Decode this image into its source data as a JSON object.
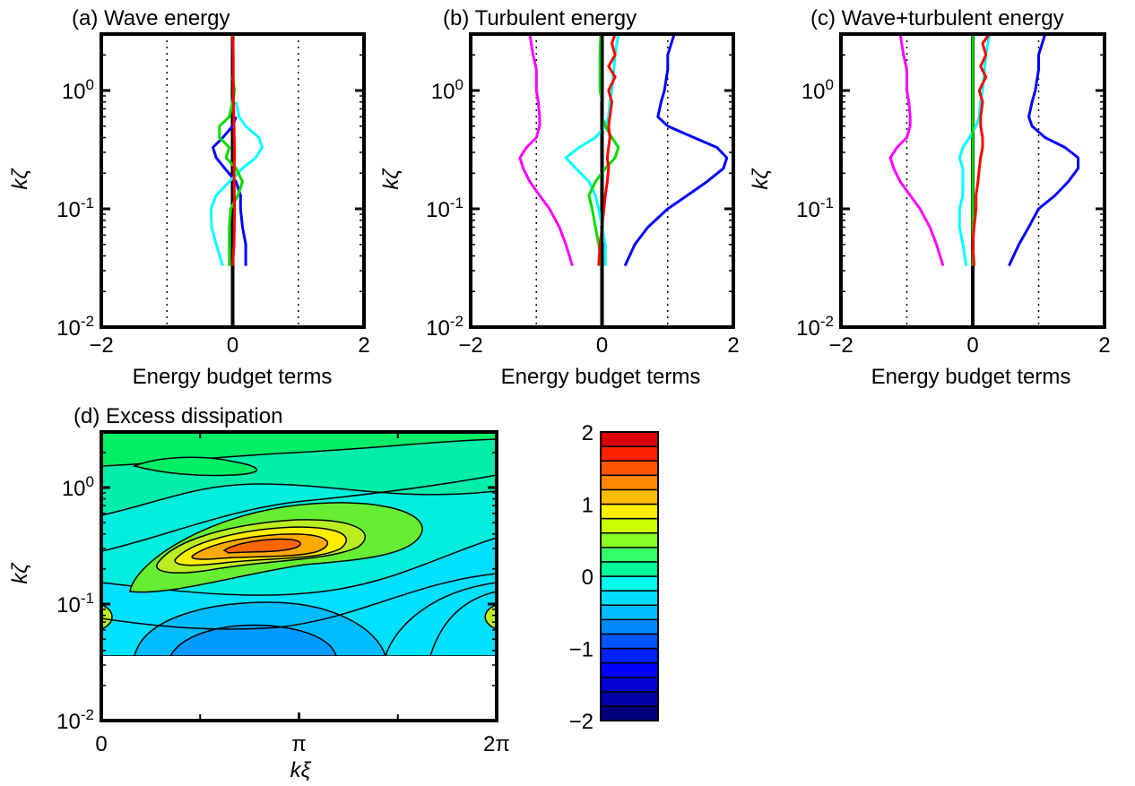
{
  "chart_data": [
    {
      "id": "a",
      "type": "line",
      "title": "(a) Wave energy",
      "xlabel": "Energy budget terms",
      "ylabel": "kζ",
      "xlim": [
        -2,
        2
      ],
      "ylim": [
        0.01,
        3
      ],
      "yscale": "log",
      "xticks": [
        -2,
        0,
        2
      ],
      "xtick_labels": [
        "−2",
        "0",
        "2"
      ],
      "yticks": [
        0.01,
        0.1,
        1
      ],
      "ytick_labels": [
        "10^-2",
        "10^-1",
        "10^0"
      ],
      "reference_lines": [
        -1,
        0,
        1
      ],
      "series": [
        {
          "color": "#0000ff",
          "y": [
            0.033,
            0.05,
            0.07,
            0.1,
            0.13,
            0.17,
            0.22,
            0.27,
            0.33,
            0.4,
            0.5,
            0.6
          ],
          "x": [
            0.2,
            0.2,
            0.15,
            0.12,
            0.12,
            0.05,
            -0.12,
            -0.25,
            -0.3,
            -0.15,
            0.0,
            0.05
          ]
        },
        {
          "color": "#00ffff",
          "y": [
            0.033,
            0.05,
            0.07,
            0.1,
            0.13,
            0.17,
            0.22,
            0.27,
            0.33,
            0.4,
            0.5,
            0.6,
            0.8
          ],
          "x": [
            -0.15,
            -0.25,
            -0.32,
            -0.33,
            -0.25,
            -0.05,
            0.15,
            0.35,
            0.45,
            0.4,
            0.2,
            0.1,
            0.05
          ]
        },
        {
          "color": "#00dd00",
          "y": [
            0.033,
            0.05,
            0.07,
            0.1,
            0.13,
            0.17,
            0.22,
            0.27,
            0.33,
            0.4,
            0.5,
            0.6,
            0.8,
            1.0,
            1.3
          ],
          "x": [
            -0.05,
            -0.05,
            -0.05,
            -0.03,
            0.08,
            0.15,
            0.05,
            -0.1,
            -0.05,
            -0.2,
            -0.2,
            -0.05,
            0.0,
            0.03,
            0.0
          ]
        },
        {
          "color": "#ff0000",
          "y": [
            0.033,
            0.05,
            0.1,
            0.2,
            0.3,
            0.5,
            1.0,
            2.0,
            3.0
          ],
          "x": [
            0.0,
            0.02,
            0.03,
            0.02,
            0.03,
            0.02,
            0.01,
            0.01,
            0.0
          ]
        }
      ]
    },
    {
      "id": "b",
      "type": "line",
      "title": "(b) Turbulent energy",
      "xlabel": "Energy budget terms",
      "ylabel": "kζ",
      "xlim": [
        -2,
        2
      ],
      "ylim": [
        0.01,
        3
      ],
      "yscale": "log",
      "xticks": [
        -2,
        0,
        2
      ],
      "xtick_labels": [
        "−2",
        "0",
        "2"
      ],
      "yticks": [
        0.01,
        0.1,
        1
      ],
      "ytick_labels": [
        "10^-2",
        "10^-1",
        "10^0"
      ],
      "reference_lines": [
        -1,
        0,
        1
      ],
      "series": [
        {
          "color": "#ff00ff",
          "y": [
            0.033,
            0.05,
            0.07,
            0.1,
            0.13,
            0.17,
            0.22,
            0.27,
            0.33,
            0.4,
            0.5,
            0.6,
            0.8,
            1.0,
            1.5,
            2.0,
            3.0
          ],
          "x": [
            -0.45,
            -0.55,
            -0.65,
            -0.8,
            -0.95,
            -1.1,
            -1.2,
            -1.25,
            -1.15,
            -1.0,
            -0.95,
            -0.95,
            -0.97,
            -1.0,
            -1.0,
            -1.05,
            -1.1
          ]
        },
        {
          "color": "#0000ff",
          "y": [
            0.033,
            0.05,
            0.07,
            0.1,
            0.13,
            0.17,
            0.22,
            0.27,
            0.33,
            0.4,
            0.5,
            0.6,
            0.8,
            1.0,
            1.5,
            2.0,
            3.0
          ],
          "x": [
            0.35,
            0.5,
            0.7,
            1.0,
            1.3,
            1.6,
            1.85,
            1.9,
            1.75,
            1.4,
            1.0,
            0.85,
            0.9,
            0.95,
            1.0,
            1.0,
            1.1
          ]
        },
        {
          "color": "#00ffff",
          "y": [
            0.033,
            0.05,
            0.07,
            0.1,
            0.13,
            0.17,
            0.22,
            0.27,
            0.33,
            0.4,
            0.5,
            0.6,
            0.8,
            1.0,
            1.5,
            2.0,
            3.0
          ],
          "x": [
            0.05,
            0.05,
            0.0,
            -0.05,
            -0.1,
            -0.2,
            -0.4,
            -0.55,
            -0.35,
            -0.1,
            0.05,
            0.1,
            0.12,
            0.15,
            0.18,
            0.2,
            0.25
          ]
        },
        {
          "color": "#00dd00",
          "y": [
            0.033,
            0.05,
            0.07,
            0.1,
            0.13,
            0.17,
            0.22,
            0.27,
            0.33,
            0.4,
            0.5,
            0.6,
            0.8,
            1.0,
            2.0,
            3.0
          ],
          "x": [
            0.0,
            -0.05,
            -0.1,
            -0.15,
            -0.2,
            -0.1,
            0.05,
            0.2,
            0.25,
            0.15,
            0.05,
            0.0,
            0.0,
            -0.03,
            -0.03,
            -0.02
          ]
        },
        {
          "color": "#ff0000",
          "y": [
            0.033,
            0.05,
            0.07,
            0.1,
            0.13,
            0.17,
            0.22,
            0.27,
            0.33,
            0.4,
            0.5,
            0.6,
            0.8,
            1.0,
            1.3,
            1.6,
            2.0,
            2.5,
            3.0
          ],
          "x": [
            -0.05,
            -0.03,
            0.0,
            0.03,
            0.05,
            0.08,
            0.1,
            0.08,
            0.1,
            0.12,
            0.1,
            0.12,
            0.15,
            0.1,
            0.2,
            0.1,
            0.2,
            0.15,
            0.2
          ]
        },
        {
          "color": "#000000",
          "y": [
            0.033,
            3.0
          ],
          "x": [
            0.0,
            0.0
          ]
        }
      ]
    },
    {
      "id": "c",
      "type": "line",
      "title": "(c) Wave+turbulent energy",
      "xlabel": "Energy budget terms",
      "ylabel": "kζ",
      "xlim": [
        -2,
        2
      ],
      "ylim": [
        0.01,
        3
      ],
      "yscale": "log",
      "xticks": [
        -2,
        0,
        2
      ],
      "xtick_labels": [
        "−2",
        "0",
        "2"
      ],
      "yticks": [
        0.01,
        0.1,
        1
      ],
      "ytick_labels": [
        "10^-2",
        "10^-1",
        "10^0"
      ],
      "reference_lines": [
        -1,
        0,
        1
      ],
      "series": [
        {
          "color": "#ff00ff",
          "y": [
            0.033,
            0.05,
            0.07,
            0.1,
            0.13,
            0.17,
            0.22,
            0.27,
            0.33,
            0.4,
            0.5,
            0.6,
            0.8,
            1.0,
            1.5,
            2.0,
            3.0
          ],
          "x": [
            -0.45,
            -0.55,
            -0.65,
            -0.8,
            -0.95,
            -1.1,
            -1.2,
            -1.25,
            -1.15,
            -1.0,
            -0.95,
            -0.95,
            -0.97,
            -1.0,
            -1.0,
            -1.05,
            -1.1
          ]
        },
        {
          "color": "#0000ff",
          "y": [
            0.033,
            0.05,
            0.07,
            0.1,
            0.13,
            0.17,
            0.22,
            0.27,
            0.33,
            0.4,
            0.5,
            0.6,
            0.8,
            1.0,
            1.5,
            2.0,
            3.0
          ],
          "x": [
            0.55,
            0.7,
            0.85,
            1.0,
            1.25,
            1.45,
            1.6,
            1.6,
            1.4,
            1.1,
            0.9,
            0.85,
            0.9,
            0.95,
            1.0,
            1.0,
            1.1
          ]
        },
        {
          "color": "#00ffff",
          "y": [
            0.033,
            0.05,
            0.07,
            0.1,
            0.13,
            0.17,
            0.22,
            0.27,
            0.33,
            0.4,
            0.5,
            0.6,
            0.8,
            1.0,
            1.5,
            2.0,
            3.0
          ],
          "x": [
            -0.1,
            -0.15,
            -0.2,
            -0.2,
            -0.15,
            -0.15,
            -0.15,
            -0.2,
            -0.15,
            -0.05,
            0.05,
            0.1,
            0.12,
            0.15,
            0.18,
            0.2,
            0.25
          ]
        },
        {
          "color": "#00dd00",
          "y": [
            0.033,
            3.0
          ],
          "x": [
            0.0,
            0.0
          ]
        },
        {
          "color": "#ff0000",
          "y": [
            0.033,
            0.05,
            0.07,
            0.1,
            0.13,
            0.17,
            0.22,
            0.27,
            0.33,
            0.4,
            0.5,
            0.6,
            0.8,
            1.0,
            1.3,
            1.6,
            2.0,
            2.5,
            3.0
          ],
          "x": [
            0.02,
            0.0,
            0.02,
            0.05,
            0.05,
            0.08,
            0.1,
            0.12,
            0.15,
            0.15,
            0.12,
            0.12,
            0.15,
            0.1,
            0.2,
            0.12,
            0.2,
            0.15,
            0.25
          ]
        }
      ]
    },
    {
      "id": "d",
      "type": "heatmap",
      "title": "(d) Excess dissipation",
      "xlabel": "kξ",
      "ylabel": "kζ",
      "xlim": [
        0,
        6.2832
      ],
      "ylim": [
        0.01,
        3
      ],
      "yscale": "log",
      "xtick_labels": [
        "0",
        "π",
        "2π"
      ],
      "ytick_labels": [
        "10^-2",
        "10^-1",
        "10^0"
      ],
      "data_ylim": [
        0.033,
        3
      ],
      "contour_levels_step": 0.2,
      "features": [
        {
          "description_value": "maximum",
          "x": 2.8,
          "y": 0.3,
          "value": 1.5
        },
        {
          "description_value": "minimum",
          "x": 2.0,
          "y": 0.04,
          "value": -0.6
        }
      ]
    },
    {
      "id": "colorbar",
      "type": "colorbar",
      "range": [
        -2,
        2
      ],
      "tick_labels": [
        "−2",
        "−1",
        "0",
        "1",
        "2"
      ],
      "levels": 20
    }
  ]
}
